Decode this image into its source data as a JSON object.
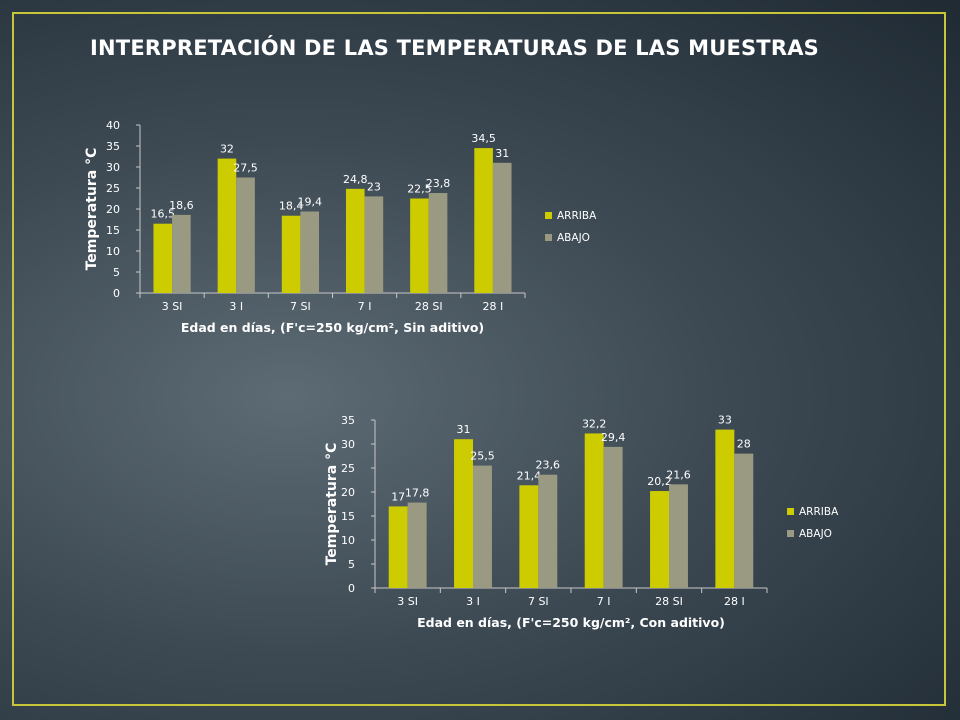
{
  "slide": {
    "title": "INTERPRETACIÓN DE LAS TEMPERATURAS DE LAS MUESTRAS"
  },
  "colors": {
    "arriba": "#cccc00",
    "abajo": "#9a9a82",
    "text": "#ffffff",
    "axis": "#c8c8c8",
    "border": "#c9c53a"
  },
  "chart_data": [
    {
      "type": "bar",
      "title": "",
      "xlabel": "Edad en días, (F'c=250 kg/cm², Sin aditivo)",
      "ylabel": "Temperatura °C",
      "categories": [
        "3 SI",
        "3 I",
        "7 SI",
        "7 I",
        "28 SI",
        "28 I"
      ],
      "series": [
        {
          "name": "ARRIBA",
          "values": [
            16.5,
            32,
            18.4,
            24.8,
            22.5,
            34.5
          ],
          "labels": [
            "16,5",
            "32",
            "18,4",
            "24,8",
            "22,5",
            "34,5"
          ]
        },
        {
          "name": "ABAJO",
          "values": [
            18.6,
            27.5,
            19.4,
            23,
            23.8,
            31
          ],
          "labels": [
            "18,6",
            "27,5",
            "19,4",
            "23",
            "23,8",
            "31"
          ]
        }
      ],
      "ylim": [
        0,
        40
      ],
      "yticks": [
        "0",
        "5",
        "10",
        "15",
        "20",
        "25",
        "30",
        "35",
        "40"
      ],
      "grid": false,
      "legend": "right"
    },
    {
      "type": "bar",
      "title": "",
      "xlabel": "Edad en días, (F'c=250 kg/cm², Con aditivo)",
      "ylabel": "Temperatura °C",
      "categories": [
        "3 SI",
        "3 I",
        "7 SI",
        "7 I",
        "28 SI",
        "28 I"
      ],
      "series": [
        {
          "name": "ARRIBA",
          "values": [
            17,
            31,
            21.4,
            32.2,
            20.2,
            33
          ],
          "labels": [
            "17",
            "31",
            "21,4",
            "32,2",
            "20,2",
            "33"
          ]
        },
        {
          "name": "ABAJO",
          "values": [
            17.8,
            25.5,
            23.6,
            29.4,
            21.6,
            28
          ],
          "labels": [
            "17,8",
            "25,5",
            "23,6",
            "29,4",
            "21,6",
            "28"
          ]
        }
      ],
      "ylim": [
        0,
        35
      ],
      "yticks": [
        "0",
        "5",
        "10",
        "15",
        "20",
        "25",
        "30",
        "35"
      ],
      "grid": false,
      "legend": "right"
    }
  ]
}
